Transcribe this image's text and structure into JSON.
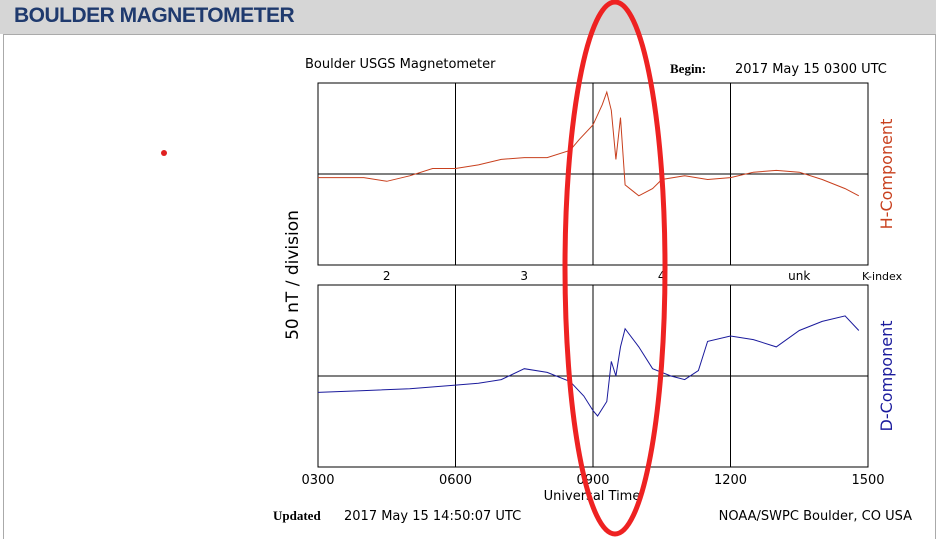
{
  "header": {
    "title": "BOULDER MAGNETOMETER"
  },
  "chart_data": {
    "type": "line",
    "title": "Boulder USGS Magnetometer",
    "begin_label": "Begin:",
    "begin": "2017 May 15 0300 UTC",
    "ylabel": "50 nT / division",
    "xlabel": "Universal Time",
    "xlim": [
      3,
      15
    ],
    "xticks": [
      {
        "value": 3,
        "label": "0300"
      },
      {
        "value": 6,
        "label": "0600"
      },
      {
        "value": 9,
        "label": "0900"
      },
      {
        "value": 12,
        "label": "1200"
      },
      {
        "value": 15,
        "label": "1500"
      }
    ],
    "ylim": [
      -50,
      50
    ],
    "k_index": {
      "label": "K-index",
      "values": [
        "2",
        "3",
        "4",
        "unk"
      ]
    },
    "series": [
      {
        "name": "H-Component",
        "color": "#c8401e",
        "x": [
          3.0,
          3.5,
          4.0,
          4.5,
          5.0,
          5.5,
          6.0,
          6.5,
          7.0,
          7.5,
          8.0,
          8.5,
          8.7,
          9.0,
          9.2,
          9.3,
          9.4,
          9.5,
          9.6,
          9.7,
          10.0,
          10.3,
          10.5,
          11.0,
          11.5,
          12.0,
          12.5,
          13.0,
          13.5,
          14.0,
          14.5,
          14.8
        ],
        "values": [
          -2,
          -2,
          -2,
          -4,
          -1,
          3,
          3,
          5,
          8,
          9,
          9,
          13,
          19,
          27,
          38,
          45,
          35,
          8,
          31,
          -6,
          -12,
          -8,
          -3,
          -1,
          -3,
          -2,
          1,
          2,
          1,
          -3,
          -8,
          -12
        ]
      },
      {
        "name": "D-Component",
        "color": "#1a1a9c",
        "x": [
          3.0,
          4.0,
          5.0,
          6.0,
          6.5,
          7.0,
          7.5,
          8.0,
          8.5,
          8.8,
          9.0,
          9.1,
          9.3,
          9.4,
          9.5,
          9.6,
          9.7,
          10.0,
          10.3,
          10.7,
          11.0,
          11.3,
          11.5,
          12.0,
          12.5,
          13.0,
          13.5,
          14.0,
          14.5,
          14.8
        ],
        "values": [
          -9,
          -8,
          -7,
          -5,
          -4,
          -2,
          4,
          2,
          -3,
          -11,
          -19,
          -22,
          -14,
          8,
          0,
          16,
          26,
          16,
          4,
          0,
          -2,
          3,
          19,
          22,
          20,
          16,
          25,
          30,
          33,
          25
        ]
      }
    ],
    "updated_label": "Updated",
    "updated": "2017 May 15 14:50:07 UTC",
    "credit": "NOAA/SWPC Boulder, CO USA"
  }
}
